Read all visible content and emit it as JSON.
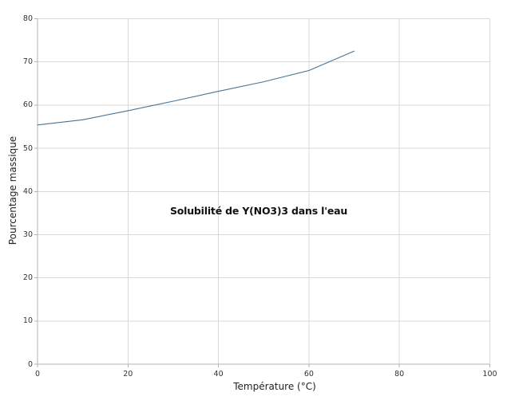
{
  "chart_data": {
    "type": "line",
    "title": "Solubilité de Y(NO3)3 dans l'eau",
    "xlabel": "Température (°C)",
    "ylabel": "Pourcentage massique",
    "xlim": [
      0,
      100
    ],
    "ylim": [
      0,
      80
    ],
    "x_ticks": [
      0,
      20,
      40,
      60,
      80,
      100
    ],
    "y_ticks": [
      0,
      10,
      20,
      30,
      40,
      50,
      60,
      70,
      80
    ],
    "grid": true,
    "legend": "none",
    "series": [
      {
        "x": [
          0,
          10,
          20,
          30,
          40,
          50,
          60,
          70
        ],
        "values": [
          55.4,
          56.6,
          58.7,
          60.9,
          63.2,
          65.4,
          68.0,
          72.5
        ]
      }
    ],
    "colors": {
      "line": "#4a7393",
      "grid": "#d9d9d9",
      "axis": "#b3b3b3",
      "tick_text": "#333333",
      "title_text": "#111111",
      "background": "#ffffff"
    }
  }
}
